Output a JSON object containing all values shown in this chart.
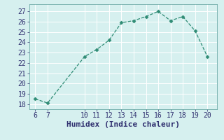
{
  "x": [
    6,
    7,
    10,
    11,
    12,
    13,
    14,
    15,
    16,
    17,
    18,
    19,
    20
  ],
  "y": [
    18.5,
    18.1,
    22.6,
    23.3,
    24.2,
    25.9,
    26.1,
    26.5,
    27.0,
    26.1,
    26.5,
    25.1,
    22.6
  ],
  "line_color": "#2e8b74",
  "marker": "D",
  "marker_size": 2.5,
  "bg_color": "#d6f0ef",
  "grid_color": "#b8dcd9",
  "tick_color": "#2e2e6e",
  "xlabel": "Humidex (Indice chaleur)",
  "xlim": [
    5.5,
    20.8
  ],
  "ylim": [
    17.5,
    27.7
  ],
  "yticks": [
    18,
    19,
    20,
    21,
    22,
    23,
    24,
    25,
    26,
    27
  ],
  "xticks": [
    6,
    7,
    10,
    11,
    12,
    13,
    14,
    15,
    16,
    17,
    18,
    19,
    20
  ],
  "font_size": 7,
  "xlabel_fontsize": 8
}
